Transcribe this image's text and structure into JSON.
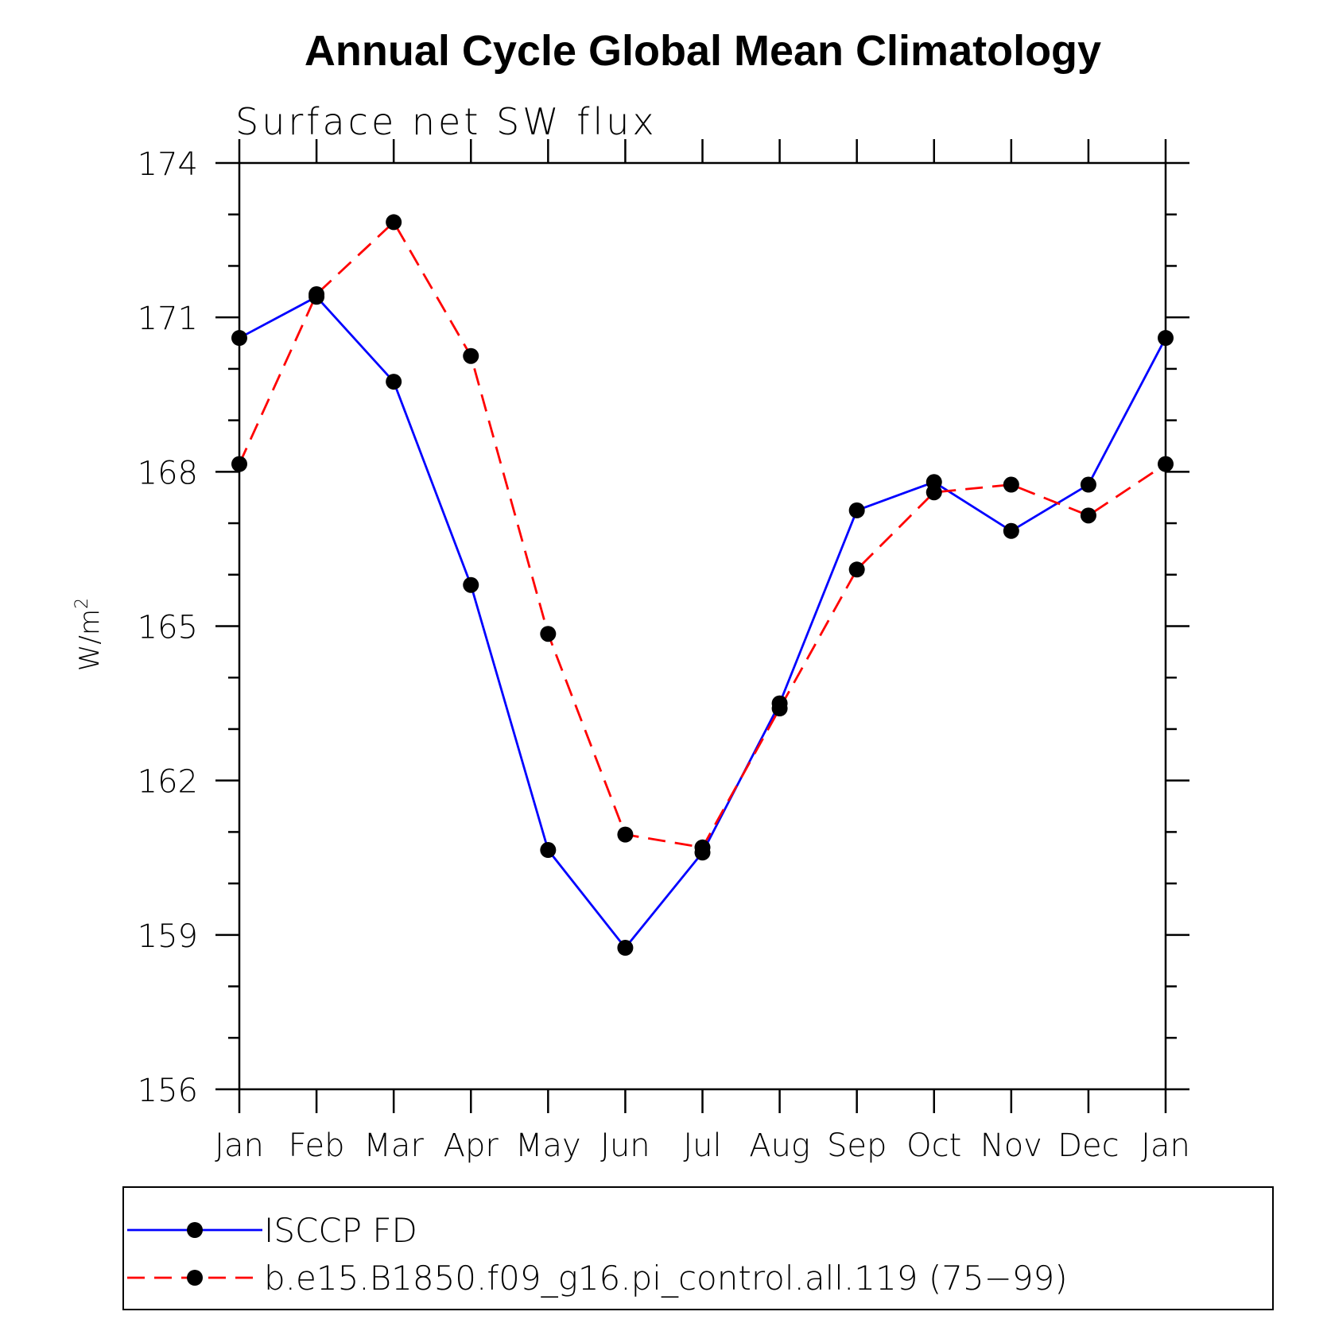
{
  "chart_data": {
    "type": "line",
    "title": "Annual Cycle Global Mean Climatology",
    "subtitle": "Surface net SW flux",
    "ylabel": "W/m",
    "ylabel_sup": "2",
    "xlabel": "",
    "ylim": [
      156,
      174
    ],
    "yticks": [
      156,
      159,
      162,
      165,
      168,
      171,
      174
    ],
    "y_minor_step": 1,
    "categories": [
      "Jan",
      "Feb",
      "Mar",
      "Apr",
      "May",
      "Jun",
      "Jul",
      "Aug",
      "Sep",
      "Oct",
      "Nov",
      "Dec",
      "Jan"
    ],
    "grid": false,
    "legend_position": "bottom",
    "series": [
      {
        "name": "ISCCP FD",
        "color": "#0000ff",
        "dash": "solid",
        "values": [
          170.6,
          171.4,
          169.75,
          165.8,
          160.65,
          158.75,
          160.6,
          163.5,
          167.25,
          167.8,
          166.85,
          167.75,
          170.6
        ]
      },
      {
        "name": "b.e15.B1850.f09_g16.pi_control.all.119 (75−99)",
        "color": "#ff0000",
        "dash": "dashed",
        "values": [
          168.15,
          171.45,
          172.85,
          170.25,
          164.85,
          160.95,
          160.7,
          163.4,
          166.1,
          167.6,
          167.75,
          167.15,
          168.15
        ]
      }
    ]
  }
}
